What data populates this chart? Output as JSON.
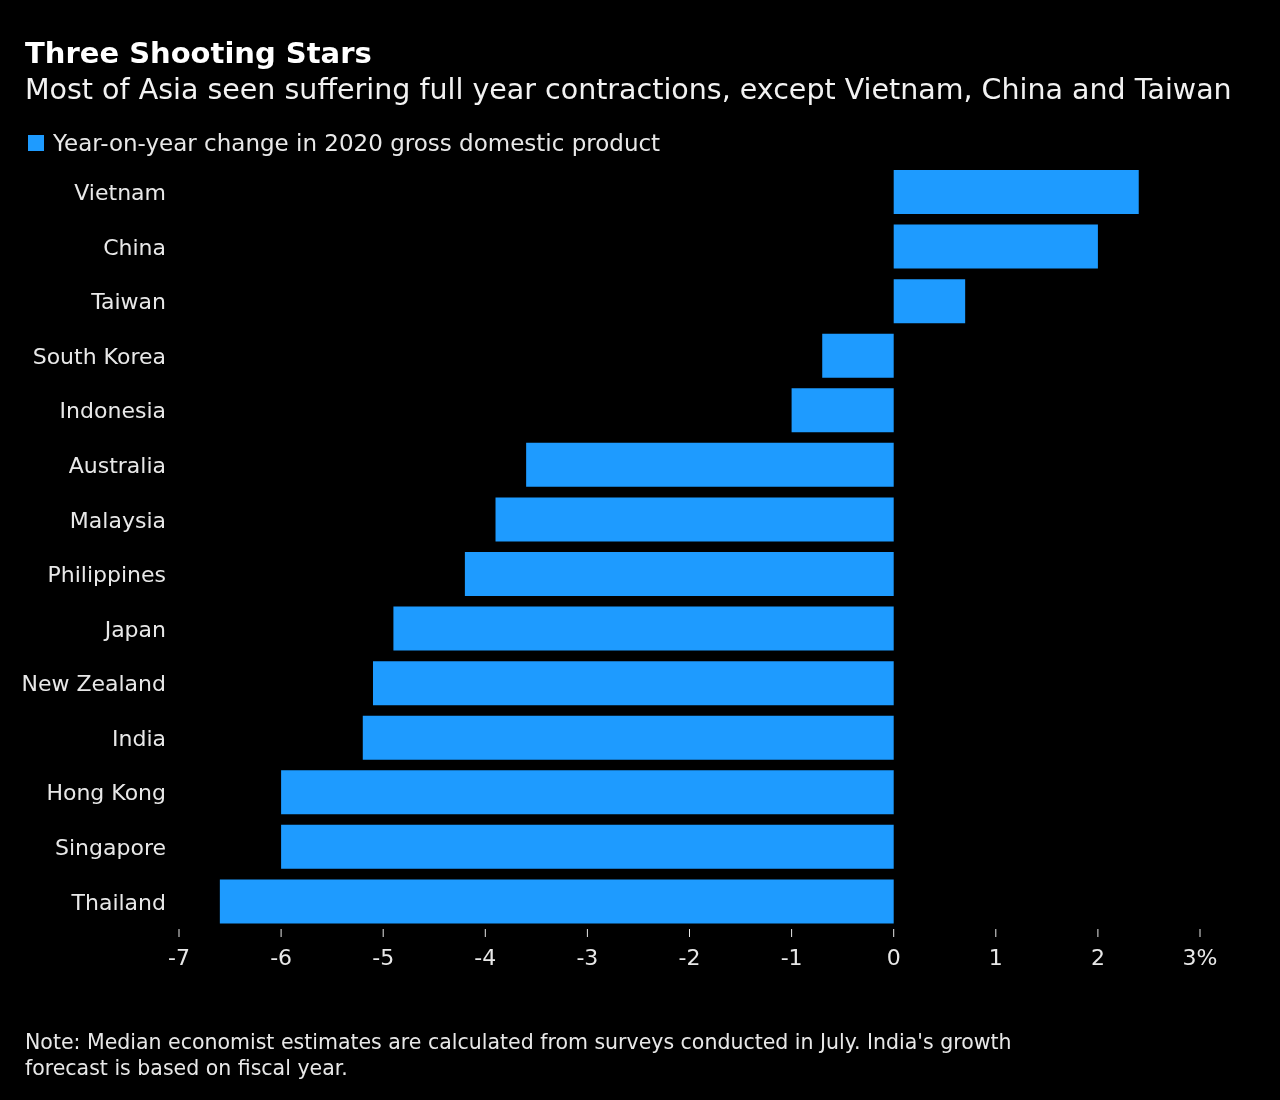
{
  "chart_data": {
    "type": "bar",
    "orientation": "horizontal",
    "title": "Three Shooting Stars",
    "subtitle": "Most of Asia seen suffering full year contractions, except Vietnam, China and Taiwan",
    "categories": [
      "Vietnam",
      "China",
      "Taiwan",
      "South Korea",
      "Indonesia",
      "Australia",
      "Malaysia",
      "Philippines",
      "Japan",
      "New Zealand",
      "India",
      "Hong Kong",
      "Singapore",
      "Thailand"
    ],
    "series": [
      {
        "name": "Year-on-year change in 2020 gross domestic product",
        "color": "#1e9bff",
        "values": [
          2.4,
          2.0,
          0.7,
          -0.7,
          -1.0,
          -3.6,
          -3.9,
          -4.2,
          -4.9,
          -5.1,
          -5.2,
          -6.0,
          -6.0,
          -6.6
        ]
      }
    ],
    "xlim": [
      -7,
      3
    ],
    "xticks": [
      -7,
      -6,
      -5,
      -4,
      -3,
      -2,
      -1,
      0,
      1,
      2,
      {
        "value": 3,
        "label": "3%"
      }
    ],
    "legend": "top left",
    "annotations": [
      "Note: Median economist estimates are calculated from surveys conducted in July. India's growth forecast is based on fiscal year."
    ]
  }
}
